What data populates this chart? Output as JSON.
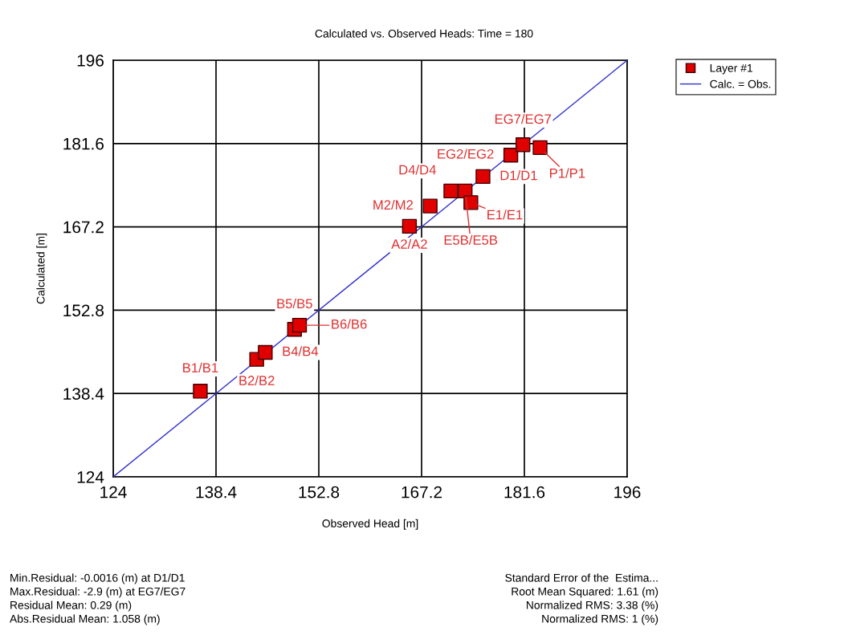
{
  "chart_data": {
    "type": "scatter",
    "title": "Calculated vs. Observed Heads: Time = 180",
    "xlabel": "Observed Head [m]",
    "ylabel": "Calculated [m]",
    "xlim": [
      124,
      196
    ],
    "ylim": [
      124,
      196
    ],
    "xticks": [
      124,
      138.4,
      152.8,
      167.2,
      181.6,
      196
    ],
    "yticks": [
      124,
      138.4,
      152.8,
      167.2,
      181.6,
      196
    ],
    "grid": true,
    "legend": "top right",
    "marker": "square",
    "series": [
      {
        "name": "Layer #1",
        "color": "#e00000",
        "x": [
          136.2,
          144.1,
          145.3,
          149.4,
          150.1,
          165.5,
          168.4,
          171.3,
          173.3,
          174.1,
          175.8,
          179.7,
          181.4,
          183.8
        ],
        "values": [
          138.8,
          144.3,
          145.5,
          149.5,
          150.2,
          167.3,
          170.8,
          173.4,
          173.4,
          171.4,
          175.9,
          179.6,
          181.4,
          180.9
        ]
      },
      {
        "name": "Calc. = Obs.",
        "type": "line",
        "color": "#3333cc",
        "marker": "none",
        "x": [
          124,
          196
        ],
        "values": [
          124,
          196
        ]
      }
    ],
    "annotations": [
      {
        "text": "B1/B1",
        "x": 136.2,
        "y": 138.8
      },
      {
        "text": "B2/B2",
        "x": 144.1,
        "y": 144.3
      },
      {
        "text": "B4/B4",
        "x": 145.3,
        "y": 145.5
      },
      {
        "text": "B5/B5",
        "x": 149.4,
        "y": 149.5
      },
      {
        "text": "B6/B6",
        "x": 150.1,
        "y": 150.2
      },
      {
        "text": "A2/A2",
        "x": 165.5,
        "y": 167.3
      },
      {
        "text": "M2/M2",
        "x": 168.4,
        "y": 170.8
      },
      {
        "text": "D4/D4",
        "x": 171.3,
        "y": 173.4
      },
      {
        "text": "E5B/E5B",
        "x": 173.3,
        "y": 173.4
      },
      {
        "text": "E1/E1",
        "x": 174.1,
        "y": 171.4
      },
      {
        "text": "D1/D1",
        "x": 175.8,
        "y": 175.9
      },
      {
        "text": "EG2/EG2",
        "x": 179.7,
        "y": 179.6
      },
      {
        "text": "EG7/EG7",
        "x": 181.4,
        "y": 181.4
      },
      {
        "text": "P1/P1",
        "x": 183.8,
        "y": 180.9
      },
      "Min.Residual: -0.0016 (m) at D1/D1",
      "Max.Residual: -2.9 (m) at EG7/EG7",
      "Residual Mean: 0.29 (m)",
      "Abs.Residual Mean: 1.058 (m)",
      "Standard Error of the  Estima...",
      "Root Mean Squared: 1.61 (m)",
      "Normalized RMS: 3.38 (%)",
      "Normalized RMS: 1 (%)"
    ]
  }
}
